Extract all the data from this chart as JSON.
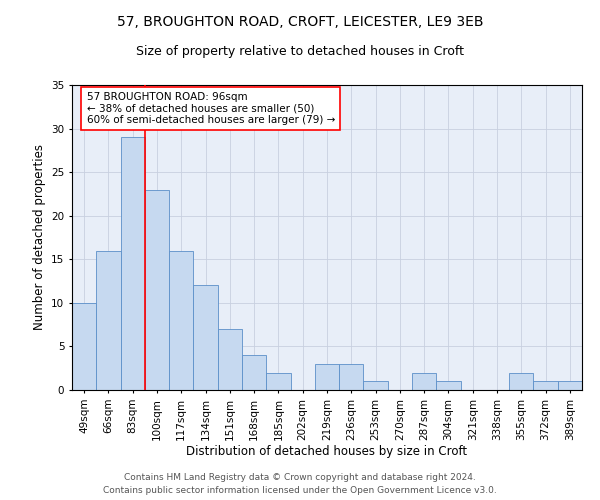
{
  "title_line1": "57, BROUGHTON ROAD, CROFT, LEICESTER, LE9 3EB",
  "title_line2": "Size of property relative to detached houses in Croft",
  "xlabel": "Distribution of detached houses by size in Croft",
  "ylabel": "Number of detached properties",
  "categories": [
    "49sqm",
    "66sqm",
    "83sqm",
    "100sqm",
    "117sqm",
    "134sqm",
    "151sqm",
    "168sqm",
    "185sqm",
    "202sqm",
    "219sqm",
    "236sqm",
    "253sqm",
    "270sqm",
    "287sqm",
    "304sqm",
    "321sqm",
    "338sqm",
    "355sqm",
    "372sqm",
    "389sqm"
  ],
  "values": [
    10,
    16,
    29,
    23,
    16,
    12,
    7,
    4,
    2,
    0,
    3,
    3,
    1,
    0,
    2,
    1,
    0,
    0,
    2,
    1,
    1
  ],
  "bar_color": "#c6d9f0",
  "bar_edge_color": "#5b8fc9",
  "red_line_index": 2.5,
  "annotation_text": "57 BROUGHTON ROAD: 96sqm\n← 38% of detached houses are smaller (50)\n60% of semi-detached houses are larger (79) →",
  "annotation_box_color": "white",
  "annotation_box_edge_color": "red",
  "red_line_color": "red",
  "ylim": [
    0,
    35
  ],
  "yticks": [
    0,
    5,
    10,
    15,
    20,
    25,
    30,
    35
  ],
  "grid_color": "#c8d0e0",
  "background_color": "#e8eef8",
  "footer_text": "Contains HM Land Registry data © Crown copyright and database right 2024.\nContains public sector information licensed under the Open Government Licence v3.0.",
  "title_fontsize": 10,
  "subtitle_fontsize": 9,
  "axis_label_fontsize": 8.5,
  "tick_fontsize": 7.5,
  "annotation_fontsize": 7.5,
  "footer_fontsize": 6.5
}
